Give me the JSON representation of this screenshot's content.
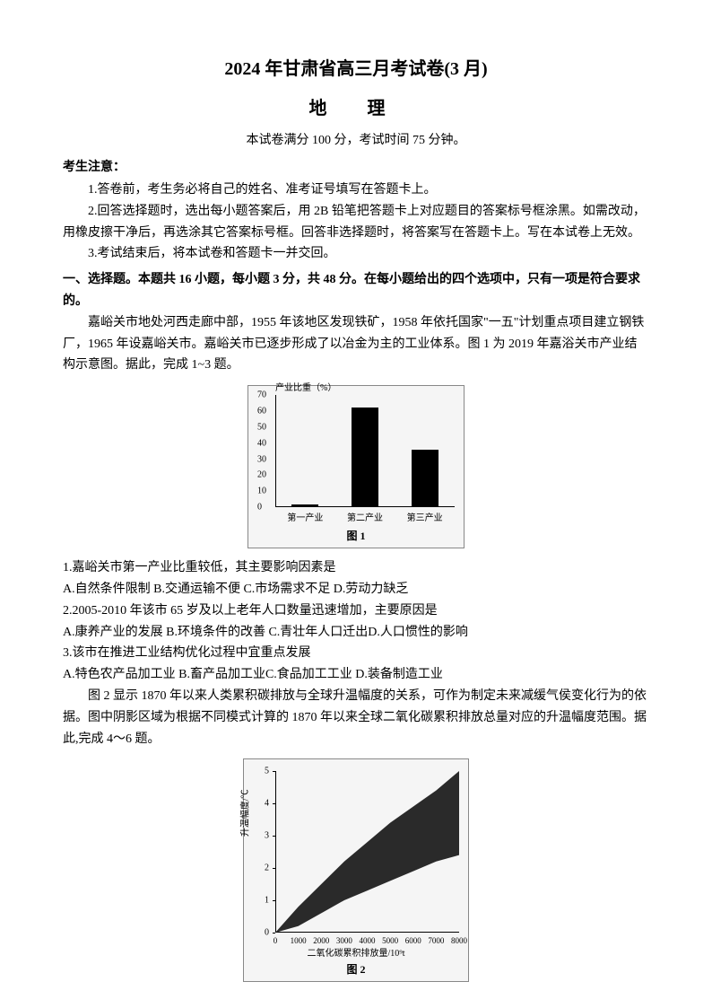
{
  "header": {
    "title_main": "2024 年甘肃省高三月考试卷(3 月)",
    "title_sub": "地   理",
    "exam_info": "本试卷满分 100 分，考试时间 75 分钟。"
  },
  "notice": {
    "header": "考生注意：",
    "items": [
      "1.答卷前，考生务必将自己的姓名、准考证号填写在答题卡上。",
      "2.回答选择题时，选出每小题答案后，用 2B 铅笔把答题卡上对应题目的答案标号框涂黑。如需改动，用橡皮擦干净后，再选涂其它答案标号框。回答非选择题时，将答案写在答题卡上。写在本试卷上无效。",
      "3.考试结束后，将本试卷和答题卡一并交回。"
    ]
  },
  "section1": {
    "header": "一、选择题。本题共 16 小题，每小题 3 分，共 48 分。在每小题给出的四个选项中，只有一项是符合要求的。"
  },
  "passage1": {
    "text": "嘉峪关市地处河西走廊中部，1955 年该地区发现铁矿，1958 年依托国家\"一五\"计划重点项目建立钢铁厂，1965 年设嘉峪关市。嘉峪关市已逐步形成了以冶金为主的工业体系。图 1 为 2019 年嘉浴关市产业结构示意图。据此，完成 1~3 题。"
  },
  "chart1": {
    "type": "bar",
    "y_axis_title": "产业比重（%）",
    "y_ticks": [
      0,
      10,
      20,
      30,
      40,
      50,
      60,
      70
    ],
    "ylim": [
      0,
      70
    ],
    "categories": [
      "第一产业",
      "第二产业",
      "第三产业"
    ],
    "values": [
      2,
      62,
      36
    ],
    "bar_color": "#000000",
    "background_color": "#f5f5f5",
    "grid_color": "#cccccc",
    "figure_label": "图 1"
  },
  "questions1": [
    "1.嘉峪关市第一产业比重较低，其主要影响因素是",
    "A.自然条件限制 B.交通运输不便 C.市场需求不足 D.劳动力缺乏",
    "2.2005-2010 年该市 65 岁及以上老年人口数量迅速增加，主要原因是",
    "A.康养产业的发展 B.环境条件的改善 C.青壮年人口迁出D.人口惯性的影响",
    "3.该市在推进工业结构优化过程中宜重点发展",
    "A.特色农产品加工业 B.畜产品加工业C.食品加工工业 D.装备制造工业"
  ],
  "passage2": {
    "text": "图 2 显示 1870 年以来人类累积碳排放与全球升温幅度的关系，可作为制定未来减缓气侯变化行为的依据。图中阴影区域为根据不同模式计算的 1870 年以来全球二氧化碳累积排放总量对应的升温幅度范围。据此,完成 4～6 题。"
  },
  "chart2": {
    "type": "scatter-band",
    "y_axis_title": "升温幅度/℃",
    "x_axis_title": "二氧化碳累积排放量/10⁹t",
    "y_ticks": [
      0,
      1,
      2,
      3,
      4,
      5
    ],
    "ylim": [
      0,
      5
    ],
    "x_ticks": [
      0,
      1000,
      2000,
      3000,
      4000,
      5000,
      6000,
      7000,
      8000
    ],
    "xlim": [
      0,
      8000
    ],
    "band_color": "#2a2a2a",
    "band_lower": [
      [
        0,
        0
      ],
      [
        1000,
        0.2
      ],
      [
        2000,
        0.6
      ],
      [
        3000,
        1.0
      ],
      [
        4000,
        1.3
      ],
      [
        5000,
        1.6
      ],
      [
        6000,
        1.9
      ],
      [
        7000,
        2.2
      ],
      [
        8000,
        2.4
      ]
    ],
    "band_upper": [
      [
        0,
        0
      ],
      [
        1000,
        0.8
      ],
      [
        2000,
        1.5
      ],
      [
        3000,
        2.2
      ],
      [
        4000,
        2.8
      ],
      [
        5000,
        3.4
      ],
      [
        6000,
        3.9
      ],
      [
        7000,
        4.4
      ],
      [
        8000,
        5.0
      ]
    ],
    "background_color": "#f5f5f5",
    "figure_label": "图 2"
  }
}
